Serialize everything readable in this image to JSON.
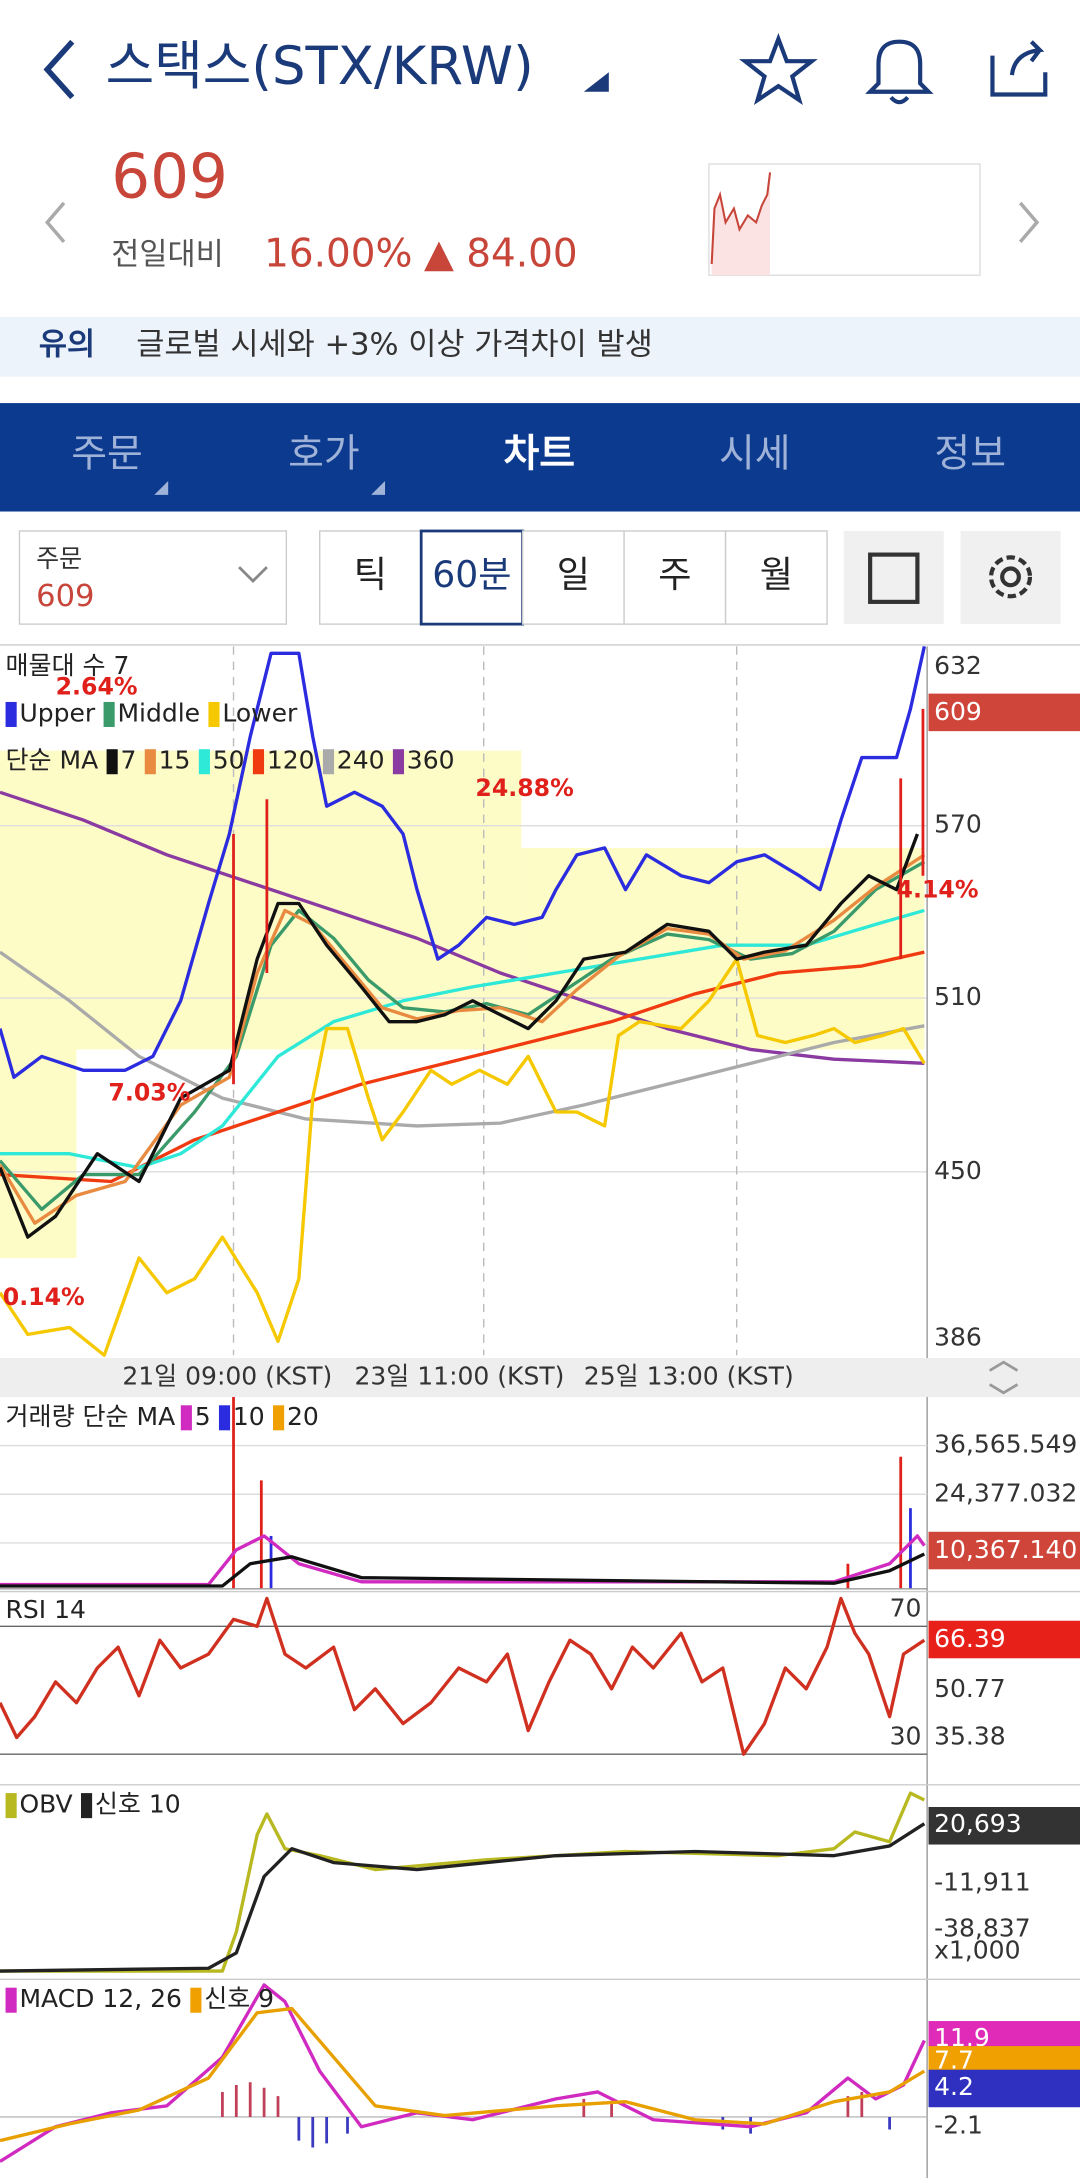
{
  "header": {
    "title": "스택스(STX/KRW)"
  },
  "price": {
    "current": "609",
    "change_label": "전일대비",
    "change_pct": "16.00%",
    "change_amount": "▲ 84.00"
  },
  "notice": {
    "tag": "유의",
    "text": "글로벌 시세와 +3% 이상 가격차이 발생"
  },
  "tabs": [
    "주문",
    "호가",
    "차트",
    "시세",
    "정보"
  ],
  "active_tab_index": 2,
  "toolbar": {
    "order_label": "주문",
    "order_value": "609",
    "intervals": [
      "틱",
      "60분",
      "일",
      "주",
      "월"
    ],
    "selected_interval_index": 1
  },
  "main_chart": {
    "volume_profile_label": "매물대 수 7",
    "bollinger": [
      "Upper",
      "Middle",
      "Lower"
    ],
    "ma_label": "단순 MA",
    "ma_periods": [
      "7",
      "15",
      "50",
      "120",
      "240",
      "360"
    ],
    "annotations": [
      "2.64%",
      "24.88%",
      "7.03%",
      "0.14%",
      "4.14%"
    ],
    "axis_labels": [
      "632",
      "570",
      "510",
      "450",
      "386"
    ],
    "current_price": "609"
  },
  "time_axis": [
    "21일 09:00 (KST)",
    "23일 11:00 (KST)",
    "25일 13:00 (KST)"
  ],
  "volume": {
    "label": "거래량 단순 MA",
    "ma_periods": [
      "5",
      "10",
      "20"
    ],
    "axis_labels": [
      "36,565.549",
      "24,377.032"
    ],
    "current": "10,367.140"
  },
  "rsi": {
    "label": "RSI 14",
    "levels": [
      "70",
      "30"
    ],
    "axis_labels": [
      "50.77",
      "35.38"
    ],
    "current": "66.39"
  },
  "obv": {
    "label": "OBV",
    "signal": "신호 10",
    "axis_labels": [
      "-11,911",
      "-38,837"
    ],
    "current": "20,693",
    "unit": "x1,000"
  },
  "macd": {
    "label": "MACD 12, 26",
    "signal": "신호 9",
    "axis_labels": [
      "-2.1"
    ],
    "current": [
      "11.9",
      "7.7",
      "4.2"
    ]
  }
}
